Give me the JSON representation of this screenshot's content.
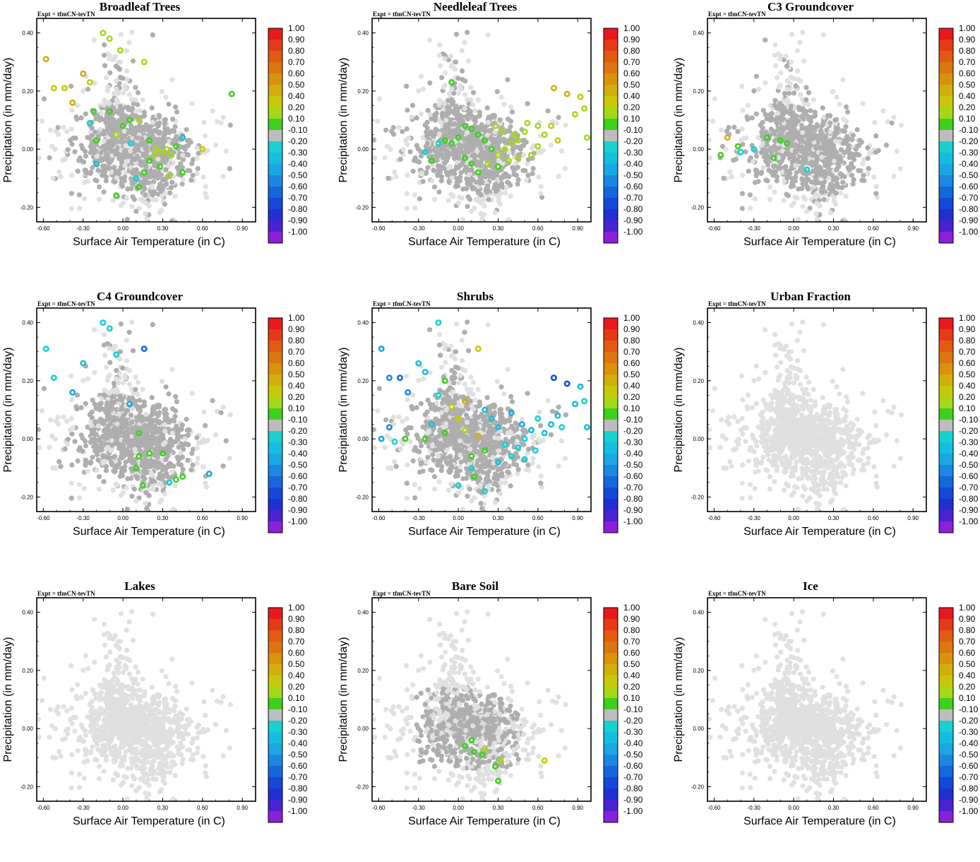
{
  "figure": {
    "expt_label": "Expt = tfmCN-tevTN",
    "xlabel": "Surface Air Temperature (in C)",
    "ylabel": "Precipitation (in mm/day)"
  },
  "colorbar": {
    "labels": [
      "1.00",
      "0.90",
      "0.80",
      "0.70",
      "0.60",
      "0.50",
      "0.40",
      "0.20",
      "0.10",
      "-0.10",
      "-0.20",
      "-0.30",
      "-0.40",
      "-0.50",
      "-0.60",
      "-0.70",
      "-0.80",
      "-0.90",
      "-1.00"
    ],
    "colors": [
      "#e8191e",
      "#e63a16",
      "#e25a12",
      "#dc7610",
      "#d8920c",
      "#d2ae0a",
      "#c8c80a",
      "#a6d81a",
      "#3fd01e",
      "#bdbdbd",
      "#18d0d0",
      "#15bede",
      "#1aa6e2",
      "#1a88e0",
      "#1468dc",
      "#1448d8",
      "#2030d4",
      "#4a22d2",
      "#8a20d8"
    ]
  },
  "chart_data": [
    {
      "type": "scatter",
      "title": "Broadleaf Trees",
      "xlabel": "Surface Air Temperature (in C)",
      "ylabel": "Precipitation (in mm/day)",
      "xlim": [
        -0.65,
        1.0
      ],
      "ylim": [
        -0.25,
        0.45
      ],
      "xticks": [
        "-0.60",
        "-0.30",
        "0.00",
        "0.30",
        "0.60",
        "0.90"
      ],
      "yticks": [
        "0.40",
        "0.20",
        "0.00",
        "-0.20"
      ],
      "highlighted_points": [
        [
          -0.58,
          0.31,
          0.45
        ],
        [
          -0.52,
          0.21,
          0.35
        ],
        [
          -0.44,
          0.21,
          0.4
        ],
        [
          -0.38,
          0.16,
          0.5
        ],
        [
          -0.3,
          0.26,
          0.45
        ],
        [
          -0.25,
          0.23,
          0.4
        ],
        [
          -0.15,
          0.4,
          0.25
        ],
        [
          -0.1,
          0.38,
          0.2
        ],
        [
          -0.02,
          0.34,
          0.18
        ],
        [
          0.16,
          0.3,
          0.35
        ],
        [
          0.6,
          0.0,
          0.35
        ],
        [
          0.82,
          0.19,
          0.12
        ],
        [
          -0.22,
          0.13,
          0.15
        ],
        [
          -0.2,
          0.03,
          0.12
        ],
        [
          -0.1,
          0.13,
          0.15
        ],
        [
          -0.05,
          0.05,
          0.18
        ],
        [
          0.0,
          0.08,
          0.12
        ],
        [
          0.05,
          0.1,
          0.15
        ],
        [
          0.12,
          0.1,
          0.2
        ],
        [
          0.2,
          0.03,
          0.15
        ],
        [
          0.24,
          -0.02,
          0.25
        ],
        [
          0.3,
          -0.01,
          0.2
        ],
        [
          0.33,
          0.0,
          0.3
        ],
        [
          0.36,
          -0.02,
          0.18
        ],
        [
          0.4,
          0.01,
          0.15
        ],
        [
          0.2,
          -0.04,
          0.12
        ],
        [
          0.28,
          -0.06,
          0.15
        ],
        [
          0.35,
          -0.09,
          0.18
        ],
        [
          0.16,
          -0.08,
          0.12
        ],
        [
          0.45,
          -0.08,
          0.15
        ],
        [
          -0.05,
          -0.16,
          0.12
        ],
        [
          0.12,
          -0.13,
          0.15
        ],
        [
          0.25,
          0.0,
          0.2
        ],
        [
          -0.2,
          -0.05,
          -0.3
        ],
        [
          0.1,
          -0.1,
          -0.25
        ],
        [
          0.45,
          0.04,
          -0.3
        ],
        [
          -0.25,
          0.09,
          -0.25
        ],
        [
          0.06,
          0.02,
          -0.2
        ]
      ],
      "density": "dense"
    },
    {
      "type": "scatter",
      "title": "Needleleaf Trees",
      "xlabel": "Surface Air Temperature (in C)",
      "ylabel": "Precipitation (in mm/day)",
      "xlim": [
        -0.65,
        1.0
      ],
      "ylim": [
        -0.25,
        0.45
      ],
      "xticks": [
        "-0.60",
        "-0.30",
        "0.00",
        "0.30",
        "0.60",
        "0.90"
      ],
      "yticks": [
        "0.40",
        "0.20",
        "0.00",
        "-0.20"
      ],
      "highlighted_points": [
        [
          -0.05,
          0.23,
          0.15
        ],
        [
          0.72,
          0.21,
          0.45
        ],
        [
          0.82,
          0.19,
          0.45
        ],
        [
          0.92,
          0.18,
          0.35
        ],
        [
          0.95,
          0.14,
          0.3
        ],
        [
          0.88,
          0.12,
          0.3
        ],
        [
          0.97,
          0.04,
          0.3
        ],
        [
          0.7,
          0.08,
          0.35
        ],
        [
          0.6,
          0.08,
          0.3
        ],
        [
          0.5,
          0.06,
          0.3
        ],
        [
          0.45,
          0.03,
          0.3
        ],
        [
          0.4,
          0.02,
          0.25
        ],
        [
          0.35,
          0.0,
          0.2
        ],
        [
          0.3,
          -0.02,
          0.2
        ],
        [
          0.25,
          0.0,
          0.15
        ],
        [
          0.2,
          0.03,
          0.15
        ],
        [
          0.15,
          0.05,
          0.15
        ],
        [
          0.1,
          0.07,
          0.12
        ],
        [
          0.05,
          0.08,
          0.15
        ],
        [
          0.0,
          0.04,
          0.12
        ],
        [
          -0.05,
          0.02,
          0.15
        ],
        [
          -0.1,
          0.03,
          0.15
        ],
        [
          0.22,
          -0.05,
          0.2
        ],
        [
          0.3,
          -0.06,
          0.15
        ],
        [
          0.38,
          -0.04,
          0.2
        ],
        [
          0.45,
          -0.03,
          0.25
        ],
        [
          0.55,
          -0.02,
          0.25
        ],
        [
          0.6,
          0.01,
          0.3
        ],
        [
          0.15,
          -0.08,
          0.15
        ],
        [
          0.1,
          -0.05,
          0.12
        ],
        [
          0.05,
          -0.03,
          0.15
        ],
        [
          0.42,
          0.05,
          0.2
        ],
        [
          0.33,
          0.06,
          0.25
        ],
        [
          0.28,
          0.08,
          0.2
        ],
        [
          0.65,
          0.05,
          0.3
        ],
        [
          0.75,
          0.03,
          0.35
        ],
        [
          0.52,
          0.09,
          0.25
        ],
        [
          -0.2,
          -0.04,
          0.15
        ],
        [
          -0.25,
          -0.01,
          -0.2
        ],
        [
          -0.15,
          0.02,
          -0.25
        ]
      ],
      "density": "dense"
    },
    {
      "type": "scatter",
      "title": "C3 Groundcover",
      "xlabel": "Surface Air Temperature (in C)",
      "ylabel": "Precipitation (in mm/day)",
      "xlim": [
        -0.65,
        1.0
      ],
      "ylim": [
        -0.25,
        0.45
      ],
      "xticks": [
        "-0.60",
        "-0.30",
        "0.00",
        "0.30",
        "0.60",
        "0.90"
      ],
      "yticks": [
        "0.40",
        "0.20",
        "0.00",
        "-0.20"
      ],
      "highlighted_points": [
        [
          -0.5,
          0.04,
          0.45
        ],
        [
          -0.42,
          0.01,
          0.15
        ],
        [
          -0.55,
          -0.02,
          0.12
        ],
        [
          -0.2,
          0.04,
          0.12
        ],
        [
          -0.1,
          0.03,
          0.15
        ],
        [
          -0.05,
          0.02,
          0.12
        ],
        [
          -0.15,
          -0.03,
          0.12
        ],
        [
          -0.3,
          0.0,
          -0.2
        ],
        [
          -0.4,
          -0.01,
          -0.25
        ],
        [
          0.1,
          -0.07,
          -0.25
        ]
      ],
      "density": "dense"
    },
    {
      "type": "scatter",
      "title": "C4 Groundcover",
      "xlabel": "Surface Air Temperature (in C)",
      "ylabel": "Precipitation (in mm/day)",
      "xlim": [
        -0.65,
        1.0
      ],
      "ylim": [
        -0.25,
        0.45
      ],
      "xticks": [
        "-0.60",
        "-0.30",
        "0.00",
        "0.30",
        "0.60",
        "0.90"
      ],
      "yticks": [
        "0.40",
        "0.20",
        "0.00",
        "-0.20"
      ],
      "highlighted_points": [
        [
          -0.58,
          0.31,
          -0.25
        ],
        [
          -0.52,
          0.21,
          -0.25
        ],
        [
          -0.38,
          0.16,
          -0.4
        ],
        [
          -0.3,
          0.26,
          -0.3
        ],
        [
          -0.15,
          0.4,
          -0.25
        ],
        [
          -0.1,
          0.38,
          -0.2
        ],
        [
          0.16,
          0.31,
          -0.6
        ],
        [
          -0.05,
          0.29,
          -0.25
        ],
        [
          0.65,
          -0.12,
          -0.4
        ],
        [
          0.05,
          0.12,
          -0.4
        ],
        [
          0.12,
          0.02,
          0.12
        ],
        [
          0.12,
          -0.06,
          0.15
        ],
        [
          0.2,
          -0.05,
          0.12
        ],
        [
          0.3,
          -0.05,
          0.15
        ],
        [
          0.45,
          -0.13,
          0.15
        ],
        [
          0.4,
          -0.14,
          0.12
        ],
        [
          0.15,
          -0.16,
          0.15
        ],
        [
          0.1,
          -0.1,
          0.12
        ],
        [
          0.35,
          -0.15,
          -0.25
        ]
      ],
      "density": "dense"
    },
    {
      "type": "scatter",
      "title": "Shrubs",
      "xlabel": "Surface Air Temperature (in C)",
      "ylabel": "Precipitation (in mm/day)",
      "xlim": [
        -0.65,
        1.0
      ],
      "ylim": [
        -0.25,
        0.45
      ],
      "xticks": [
        "-0.60",
        "-0.30",
        "0.00",
        "0.30",
        "0.60",
        "0.90"
      ],
      "yticks": [
        "0.40",
        "0.20",
        "0.00",
        "-0.20"
      ],
      "highlighted_points": [
        [
          -0.58,
          0.31,
          -0.4
        ],
        [
          -0.52,
          0.21,
          -0.5
        ],
        [
          -0.44,
          0.21,
          -0.55
        ],
        [
          -0.38,
          0.16,
          -0.5
        ],
        [
          -0.3,
          0.26,
          -0.3
        ],
        [
          -0.25,
          0.23,
          -0.3
        ],
        [
          -0.15,
          0.4,
          -0.25
        ],
        [
          0.15,
          0.31,
          0.35
        ],
        [
          0.72,
          0.21,
          -0.7
        ],
        [
          0.82,
          0.19,
          -0.75
        ],
        [
          0.92,
          0.18,
          -0.3
        ],
        [
          0.95,
          0.13,
          -0.25
        ],
        [
          0.88,
          0.12,
          -0.3
        ],
        [
          0.97,
          0.04,
          -0.3
        ],
        [
          0.75,
          0.08,
          -0.3
        ],
        [
          0.7,
          0.05,
          -0.35
        ],
        [
          0.6,
          0.07,
          -0.25
        ],
        [
          0.55,
          0.03,
          -0.3
        ],
        [
          0.5,
          0.0,
          -0.25
        ],
        [
          0.45,
          -0.03,
          -0.2
        ],
        [
          0.4,
          -0.06,
          -0.25
        ],
        [
          0.35,
          -0.02,
          -0.25
        ],
        [
          0.3,
          0.04,
          -0.3
        ],
        [
          0.25,
          0.07,
          -0.35
        ],
        [
          0.2,
          0.1,
          -0.3
        ],
        [
          0.4,
          0.09,
          -0.4
        ],
        [
          0.48,
          0.05,
          -0.4
        ],
        [
          0.65,
          0.02,
          -0.3
        ],
        [
          0.78,
          0.04,
          -0.25
        ],
        [
          0.58,
          -0.04,
          -0.25
        ],
        [
          0.5,
          -0.07,
          -0.2
        ],
        [
          0.3,
          -0.08,
          -0.3
        ],
        [
          0.1,
          -0.1,
          -0.25
        ],
        [
          0.05,
          0.03,
          0.2
        ],
        [
          0.0,
          0.07,
          0.35
        ],
        [
          -0.05,
          0.11,
          0.4
        ],
        [
          0.05,
          0.13,
          0.45
        ],
        [
          -0.1,
          0.2,
          0.1
        ],
        [
          -0.15,
          0.15,
          -0.2
        ],
        [
          -0.2,
          0.05,
          -0.3
        ],
        [
          -0.25,
          0.0,
          0.12
        ],
        [
          -0.4,
          0.0,
          0.15
        ],
        [
          -0.48,
          -0.01,
          -0.2
        ],
        [
          -0.1,
          0.02,
          0.15
        ],
        [
          0.15,
          0.01,
          0.5
        ],
        [
          0.2,
          -0.04,
          0.15
        ],
        [
          0.1,
          -0.06,
          0.12
        ],
        [
          0.0,
          -0.16,
          -0.25
        ],
        [
          0.2,
          -0.18,
          -0.2
        ],
        [
          0.12,
          -0.13,
          0.12
        ],
        [
          -0.52,
          0.04,
          -0.5
        ],
        [
          -0.58,
          0.0,
          -0.4
        ]
      ],
      "density": "dense"
    },
    {
      "type": "scatter",
      "title": "Urban Fraction",
      "xlabel": "Surface Air Temperature (in C)",
      "ylabel": "Precipitation (in mm/day)",
      "xlim": [
        -0.65,
        1.0
      ],
      "ylim": [
        -0.25,
        0.45
      ],
      "xticks": [
        "-0.60",
        "-0.30",
        "0.00",
        "0.30",
        "0.60",
        "0.90"
      ],
      "yticks": [
        "0.40",
        "0.20",
        "0.00",
        "-0.20"
      ],
      "highlighted_points": [],
      "density": "none"
    },
    {
      "type": "scatter",
      "title": "Lakes",
      "xlabel": "Surface Air Temperature (in C)",
      "ylabel": "Precipitation (in mm/day)",
      "xlim": [
        -0.65,
        1.0
      ],
      "ylim": [
        -0.25,
        0.45
      ],
      "xticks": [
        "-0.60",
        "-0.30",
        "0.00",
        "0.30",
        "0.60",
        "0.90"
      ],
      "yticks": [
        "0.40",
        "0.20",
        "0.00",
        "-0.20"
      ],
      "highlighted_points": [],
      "density": "none"
    },
    {
      "type": "scatter",
      "title": "Bare Soil",
      "xlabel": "Surface Air Temperature (in C)",
      "ylabel": "Precipitation (in mm/day)",
      "xlim": [
        -0.65,
        1.0
      ],
      "ylim": [
        -0.25,
        0.45
      ],
      "xticks": [
        "-0.60",
        "-0.30",
        "0.00",
        "0.30",
        "0.60",
        "0.90"
      ],
      "yticks": [
        "0.40",
        "0.20",
        "0.00",
        "-0.20"
      ],
      "highlighted_points": [
        [
          0.05,
          -0.06,
          0.15
        ],
        [
          0.1,
          -0.04,
          0.12
        ],
        [
          0.12,
          -0.08,
          0.15
        ],
        [
          0.18,
          -0.09,
          0.12
        ],
        [
          0.28,
          -0.13,
          0.15
        ],
        [
          0.32,
          -0.11,
          0.3
        ],
        [
          0.3,
          -0.18,
          0.12
        ],
        [
          0.65,
          -0.11,
          0.35
        ],
        [
          0.2,
          -0.07,
          0.2
        ]
      ],
      "density": "medium"
    },
    {
      "type": "scatter",
      "title": "Ice",
      "xlabel": "Surface Air Temperature (in C)",
      "ylabel": "Precipitation (in mm/day)",
      "xlim": [
        -0.65,
        1.0
      ],
      "ylim": [
        -0.25,
        0.45
      ],
      "xticks": [
        "-0.60",
        "-0.30",
        "0.00",
        "0.30",
        "0.60",
        "0.90"
      ],
      "yticks": [
        "0.40",
        "0.20",
        "0.00",
        "-0.20"
      ],
      "highlighted_points": [],
      "density": "none"
    }
  ]
}
